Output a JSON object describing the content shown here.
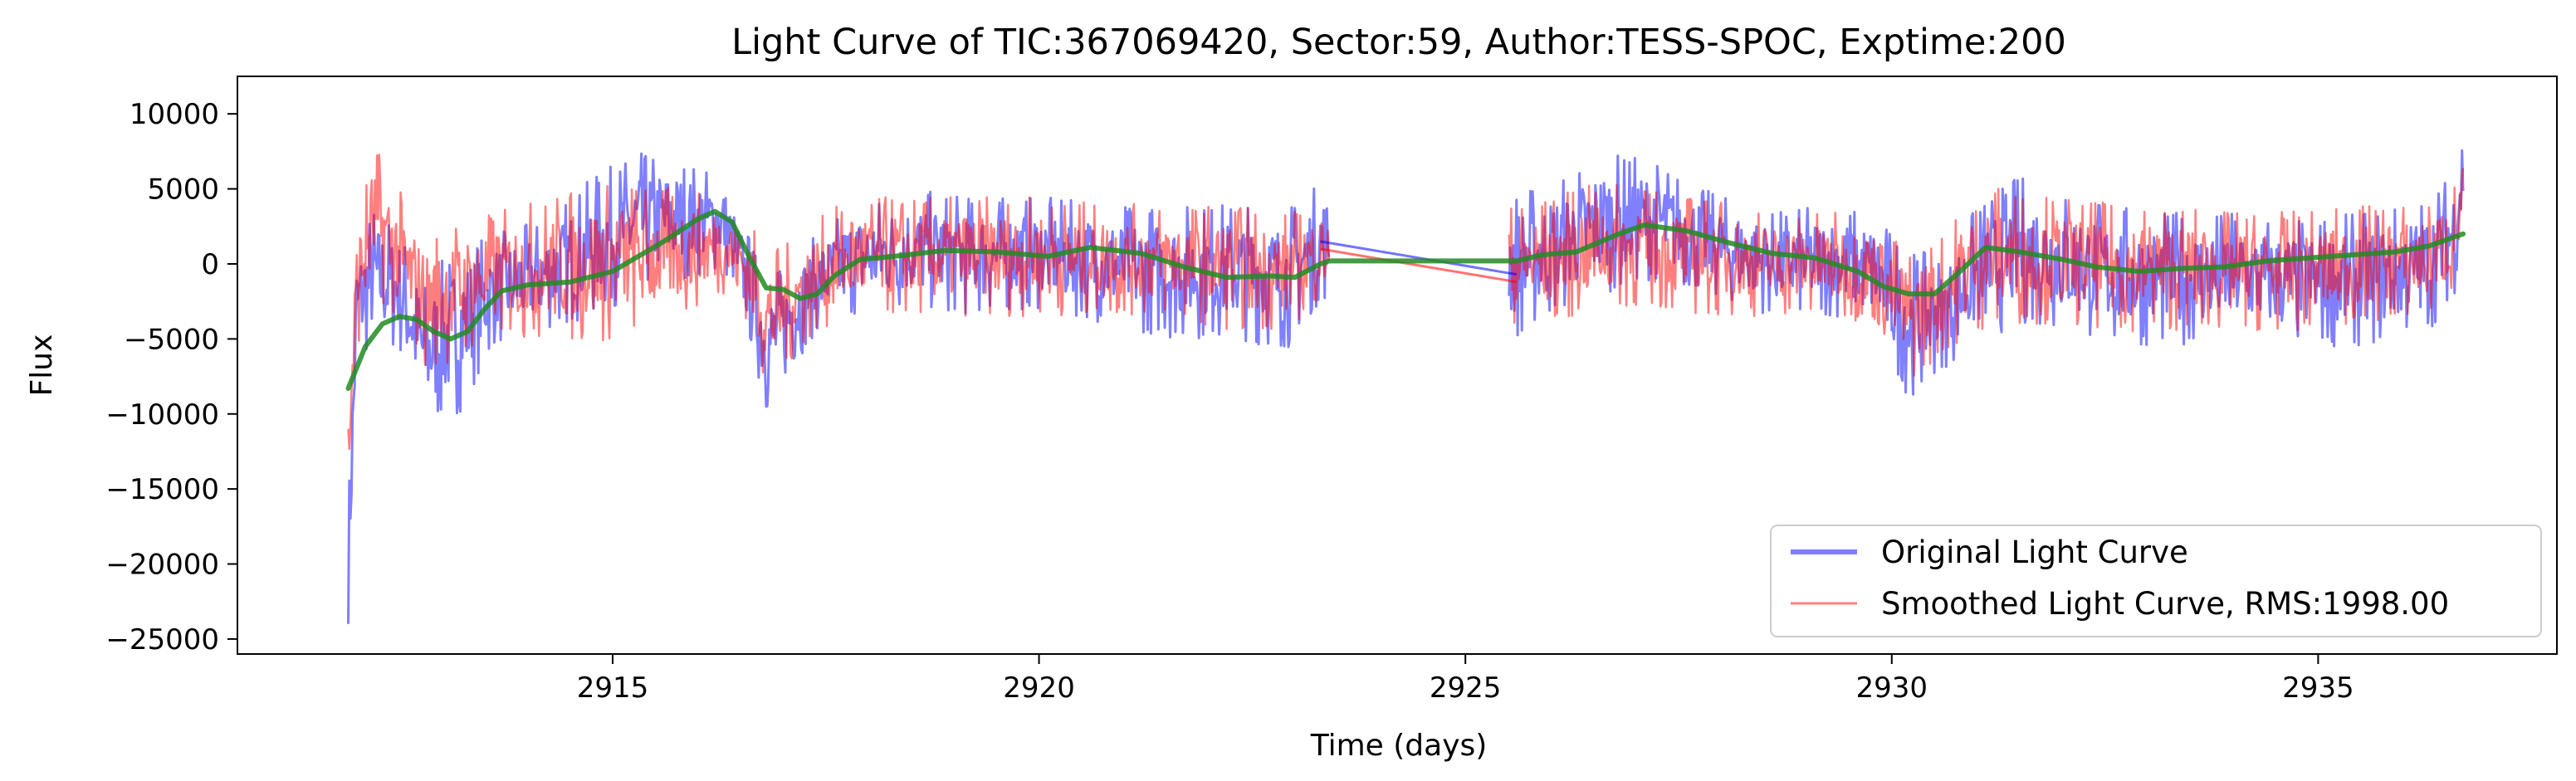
{
  "chart_data": {
    "type": "line",
    "title": "Light Curve of TIC:367069420, Sector:59, Author:TESS-SPOC, Exptime:200",
    "xlabel": "Time (days)",
    "ylabel": "Flux",
    "xlim": [
      2910.6,
      2937.8
    ],
    "ylim": [
      -26000,
      12500
    ],
    "xticks": [
      2915,
      2920,
      2925,
      2930,
      2935
    ],
    "yticks": [
      10000,
      5000,
      0,
      -5000,
      -10000,
      -15000,
      -20000,
      -25000
    ],
    "grid": false,
    "legend_position": "lower-right",
    "series": [
      {
        "name": "Original Light Curve",
        "color": "#0000ff",
        "opacity": 0.5,
        "style": "noisy",
        "envelope": [
          [
            2911.9,
            -24000,
            -16000
          ],
          [
            2912.0,
            -7000,
            1500
          ],
          [
            2912.2,
            -5500,
            4000
          ],
          [
            2912.5,
            -6000,
            2500
          ],
          [
            2912.8,
            -11000,
            -1000
          ],
          [
            2913.2,
            -10000,
            1500
          ],
          [
            2913.6,
            -5500,
            2000
          ],
          [
            2914.2,
            -4500,
            3000
          ],
          [
            2914.8,
            -3500,
            6000
          ],
          [
            2915.3,
            -2000,
            7500
          ],
          [
            2915.8,
            -1000,
            7000
          ],
          [
            2916.3,
            -500,
            6000
          ],
          [
            2916.6,
            -5000,
            2000
          ],
          [
            2916.8,
            -10000,
            -1000
          ],
          [
            2917.1,
            -7000,
            500
          ],
          [
            2917.4,
            -4500,
            2000
          ],
          [
            2917.8,
            -3500,
            4000
          ],
          [
            2918.5,
            -3000,
            5000
          ],
          [
            2919.2,
            -3500,
            4500
          ],
          [
            2920.0,
            -3000,
            4500
          ],
          [
            2920.8,
            -4000,
            4000
          ],
          [
            2921.5,
            -5000,
            4000
          ],
          [
            2922.3,
            -5000,
            4200
          ],
          [
            2922.9,
            -5800,
            3800
          ],
          [
            2923.3,
            -2500,
            5500
          ],
          [
            2925.6,
            -5000,
            5000
          ],
          [
            2926.0,
            -3500,
            5500
          ],
          [
            2926.6,
            -2000,
            7500
          ],
          [
            2927.2,
            -1000,
            7000
          ],
          [
            2927.8,
            -2000,
            5000
          ],
          [
            2928.6,
            -3500,
            3500
          ],
          [
            2929.3,
            -3500,
            4000
          ],
          [
            2929.8,
            -4500,
            3500
          ],
          [
            2930.2,
            -9000,
            1000
          ],
          [
            2930.6,
            -7000,
            500
          ],
          [
            2931.0,
            -5500,
            4000
          ],
          [
            2931.5,
            -4000,
            6000
          ],
          [
            2932.0,
            -4500,
            5000
          ],
          [
            2932.6,
            -5500,
            4000
          ],
          [
            2933.2,
            -5500,
            3500
          ],
          [
            2934.0,
            -5000,
            3500
          ],
          [
            2934.8,
            -5500,
            3000
          ],
          [
            2935.6,
            -5500,
            3500
          ],
          [
            2936.3,
            -4500,
            4500
          ],
          [
            2936.6,
            -2000,
            6500
          ],
          [
            2936.7,
            2000,
            10800
          ]
        ]
      },
      {
        "name": "Smoothed Light Curve, RMS:1998.00",
        "color": "#ff0000",
        "opacity": 0.5,
        "style": "noisy",
        "envelope": [
          [
            2911.9,
            -16000,
            -9000
          ],
          [
            2912.0,
            -6000,
            3000
          ],
          [
            2912.2,
            -2000,
            8200
          ],
          [
            2912.5,
            -4000,
            5000
          ],
          [
            2912.8,
            -7000,
            2000
          ],
          [
            2913.2,
            -6500,
            3000
          ],
          [
            2913.6,
            -5000,
            3500
          ],
          [
            2914.2,
            -5000,
            4500
          ],
          [
            2914.8,
            -5500,
            5500
          ],
          [
            2915.3,
            -4500,
            5500
          ],
          [
            2915.8,
            -3500,
            5000
          ],
          [
            2916.3,
            -2000,
            4500
          ],
          [
            2916.6,
            -4000,
            3000
          ],
          [
            2916.8,
            -8500,
            1000
          ],
          [
            2917.1,
            -6500,
            1500
          ],
          [
            2917.4,
            -4500,
            3000
          ],
          [
            2917.8,
            -3500,
            4500
          ],
          [
            2918.5,
            -3500,
            4500
          ],
          [
            2919.2,
            -3500,
            4500
          ],
          [
            2920.0,
            -3500,
            4500
          ],
          [
            2920.8,
            -3500,
            4000
          ],
          [
            2921.5,
            -3500,
            4000
          ],
          [
            2922.3,
            -4500,
            4000
          ],
          [
            2922.9,
            -4500,
            3500
          ],
          [
            2923.3,
            -2500,
            4000
          ],
          [
            2925.6,
            -4000,
            4000
          ],
          [
            2926.0,
            -4000,
            4500
          ],
          [
            2926.6,
            -3000,
            5500
          ],
          [
            2927.2,
            -3000,
            5000
          ],
          [
            2927.8,
            -3500,
            4500
          ],
          [
            2928.6,
            -3500,
            3500
          ],
          [
            2929.3,
            -3500,
            3500
          ],
          [
            2929.8,
            -4000,
            3000
          ],
          [
            2930.2,
            -8000,
            1000
          ],
          [
            2930.6,
            -6000,
            2000
          ],
          [
            2931.0,
            -4500,
            5500
          ],
          [
            2931.5,
            -4000,
            5000
          ],
          [
            2932.0,
            -4000,
            4500
          ],
          [
            2932.6,
            -4500,
            4000
          ],
          [
            2933.2,
            -4500,
            4000
          ],
          [
            2934.0,
            -4500,
            3500
          ],
          [
            2934.8,
            -4500,
            3500
          ],
          [
            2935.6,
            -4000,
            4000
          ],
          [
            2936.3,
            -3500,
            4000
          ],
          [
            2936.6,
            -2000,
            5500
          ],
          [
            2936.7,
            1000,
            7800
          ]
        ]
      },
      {
        "color": "#228b22",
        "opacity": 0.85,
        "style": "smooth",
        "points": [
          [
            2911.9,
            -8300
          ],
          [
            2912.1,
            -5500
          ],
          [
            2912.3,
            -4000
          ],
          [
            2912.5,
            -3500
          ],
          [
            2912.7,
            -3700
          ],
          [
            2912.9,
            -4500
          ],
          [
            2913.1,
            -5000
          ],
          [
            2913.3,
            -4500
          ],
          [
            2913.5,
            -3000
          ],
          [
            2913.7,
            -1800
          ],
          [
            2914.0,
            -1400
          ],
          [
            2914.5,
            -1200
          ],
          [
            2915.0,
            -500
          ],
          [
            2915.3,
            500
          ],
          [
            2915.6,
            1500
          ],
          [
            2916.0,
            3000
          ],
          [
            2916.2,
            3500
          ],
          [
            2916.4,
            2800
          ],
          [
            2916.6,
            500
          ],
          [
            2916.8,
            -1600
          ],
          [
            2917.0,
            -1700
          ],
          [
            2917.2,
            -2300
          ],
          [
            2917.4,
            -2000
          ],
          [
            2917.6,
            -800
          ],
          [
            2917.9,
            300
          ],
          [
            2918.3,
            500
          ],
          [
            2918.9,
            900
          ],
          [
            2919.5,
            800
          ],
          [
            2920.1,
            500
          ],
          [
            2920.6,
            1100
          ],
          [
            2921.2,
            700
          ],
          [
            2921.7,
            -200
          ],
          [
            2922.2,
            -900
          ],
          [
            2922.7,
            -800
          ],
          [
            2923.0,
            -900
          ],
          [
            2923.3,
            0
          ],
          [
            2923.4,
            200
          ],
          [
            2925.6,
            200
          ],
          [
            2925.9,
            600
          ],
          [
            2926.3,
            800
          ],
          [
            2926.8,
            2000
          ],
          [
            2927.1,
            2600
          ],
          [
            2927.6,
            2200
          ],
          [
            2928.1,
            1400
          ],
          [
            2928.6,
            700
          ],
          [
            2929.1,
            400
          ],
          [
            2929.6,
            -500
          ],
          [
            2929.9,
            -1500
          ],
          [
            2930.2,
            -2000
          ],
          [
            2930.5,
            -2000
          ],
          [
            2930.8,
            -500
          ],
          [
            2931.1,
            1100
          ],
          [
            2931.5,
            800
          ],
          [
            2932.0,
            300
          ],
          [
            2932.4,
            -200
          ],
          [
            2932.9,
            -500
          ],
          [
            2933.4,
            -300
          ],
          [
            2933.9,
            -200
          ],
          [
            2934.4,
            200
          ],
          [
            2934.9,
            400
          ],
          [
            2935.4,
            600
          ],
          [
            2935.9,
            800
          ],
          [
            2936.3,
            1200
          ],
          [
            2936.7,
            2000
          ]
        ]
      }
    ],
    "connectors": [
      {
        "color": "#0000ff",
        "from": [
          2923.3,
          1500
        ],
        "to": [
          2925.6,
          -700
        ]
      },
      {
        "color": "#ff0000",
        "from": [
          2923.3,
          1000
        ],
        "to": [
          2925.6,
          -1200
        ]
      }
    ]
  }
}
